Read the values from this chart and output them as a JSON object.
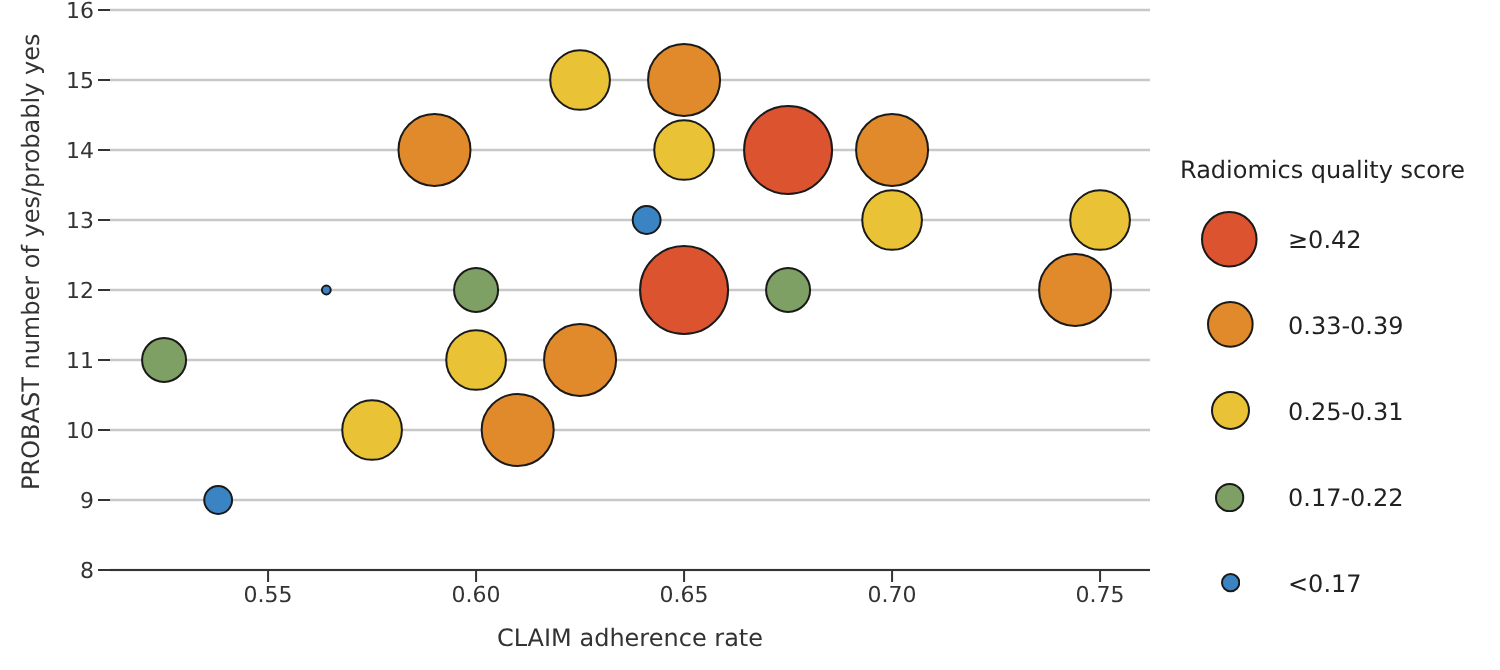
{
  "chart_data": {
    "type": "bubble",
    "xlabel": "CLAIM adherence rate",
    "ylabel": "PROBAST number of yes/probably yes",
    "legend_title": "Radiomics quality score",
    "legend": "right",
    "grid": "y",
    "xlim": [
      0.512,
      0.762
    ],
    "xticks": [
      {
        "value": 0.55,
        "label": "0.55"
      },
      {
        "value": 0.6,
        "label": "0.60"
      },
      {
        "value": 0.65,
        "label": "0.65"
      },
      {
        "value": 0.7,
        "label": "0.70"
      },
      {
        "value": 0.75,
        "label": "0.75"
      }
    ],
    "ylim": [
      8,
      16
    ],
    "yticks": [
      8,
      9,
      10,
      11,
      12,
      13,
      14,
      15,
      16
    ],
    "series": [
      {
        "name": "≥0.42",
        "color": "#dc5330",
        "x": [
          0.65,
          0.675
        ],
        "values": [
          12,
          14
        ],
        "sizes": [
          1,
          1
        ]
      },
      {
        "name": "0.33-0.39",
        "color": "#e08a2c",
        "x": [
          0.59,
          0.61,
          0.625,
          0.65,
          0.7,
          0.744
        ],
        "values": [
          14,
          10,
          11,
          15,
          14,
          12
        ],
        "sizes": [
          0.67,
          0.67,
          0.67,
          0.67,
          0.67,
          0.67
        ]
      },
      {
        "name": "0.25-0.31",
        "color": "#e9c236",
        "x": [
          0.575,
          0.6,
          0.625,
          0.65,
          0.7,
          0.75
        ],
        "values": [
          10,
          11,
          15,
          14,
          13,
          13
        ],
        "sizes": [
          0.46,
          0.46,
          0.46,
          0.46,
          0.46,
          0.46
        ]
      },
      {
        "name": "0.17-0.22",
        "color": "#7fa065",
        "x": [
          0.525,
          0.6,
          0.675
        ],
        "values": [
          11,
          12,
          12
        ],
        "sizes": [
          0.25,
          0.25,
          0.25
        ]
      },
      {
        "name": "<0.17",
        "color": "#3b84c4",
        "x": [
          0.538,
          0.641,
          0.564
        ],
        "values": [
          9,
          13,
          12
        ],
        "sizes": [
          0.1,
          0.1,
          0.01
        ]
      }
    ]
  }
}
